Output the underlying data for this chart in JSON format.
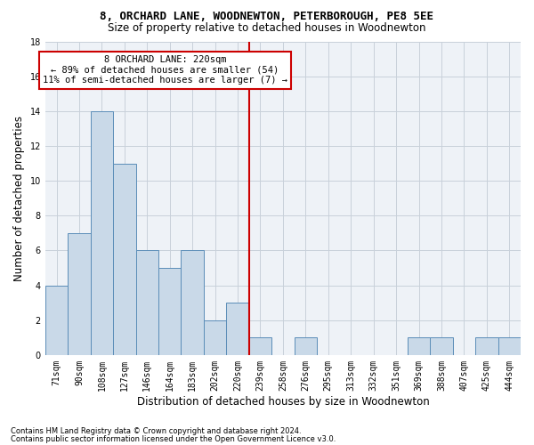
{
  "title": "8, ORCHARD LANE, WOODNEWTON, PETERBOROUGH, PE8 5EE",
  "subtitle": "Size of property relative to detached houses in Woodnewton",
  "xlabel": "Distribution of detached houses by size in Woodnewton",
  "ylabel": "Number of detached properties",
  "footnote1": "Contains HM Land Registry data © Crown copyright and database right 2024.",
  "footnote2": "Contains public sector information licensed under the Open Government Licence v3.0.",
  "annotation_line1": "8 ORCHARD LANE: 220sqm",
  "annotation_line2": "← 89% of detached houses are smaller (54)",
  "annotation_line3": "11% of semi-detached houses are larger (7) →",
  "bar_labels": [
    "71sqm",
    "90sqm",
    "108sqm",
    "127sqm",
    "146sqm",
    "164sqm",
    "183sqm",
    "202sqm",
    "220sqm",
    "239sqm",
    "258sqm",
    "276sqm",
    "295sqm",
    "313sqm",
    "332sqm",
    "351sqm",
    "369sqm",
    "388sqm",
    "407sqm",
    "425sqm",
    "444sqm"
  ],
  "bar_values": [
    4,
    7,
    14,
    11,
    6,
    5,
    6,
    2,
    3,
    1,
    0,
    1,
    0,
    0,
    0,
    0,
    1,
    1,
    0,
    1,
    1
  ],
  "bar_color": "#c9d9e8",
  "bar_edge_color": "#5b8db8",
  "vline_idx": 8,
  "vline_color": "#cc0000",
  "annotation_box_color": "#cc0000",
  "ylim": [
    0,
    18
  ],
  "yticks": [
    0,
    2,
    4,
    6,
    8,
    10,
    12,
    14,
    16,
    18
  ],
  "bg_color": "#eef2f7",
  "grid_color": "#c8d0da",
  "title_fontsize": 9,
  "subtitle_fontsize": 8.5,
  "ylabel_fontsize": 8.5,
  "xlabel_fontsize": 8.5,
  "tick_fontsize": 7,
  "footnote_fontsize": 6,
  "ann_fontsize": 7.5
}
